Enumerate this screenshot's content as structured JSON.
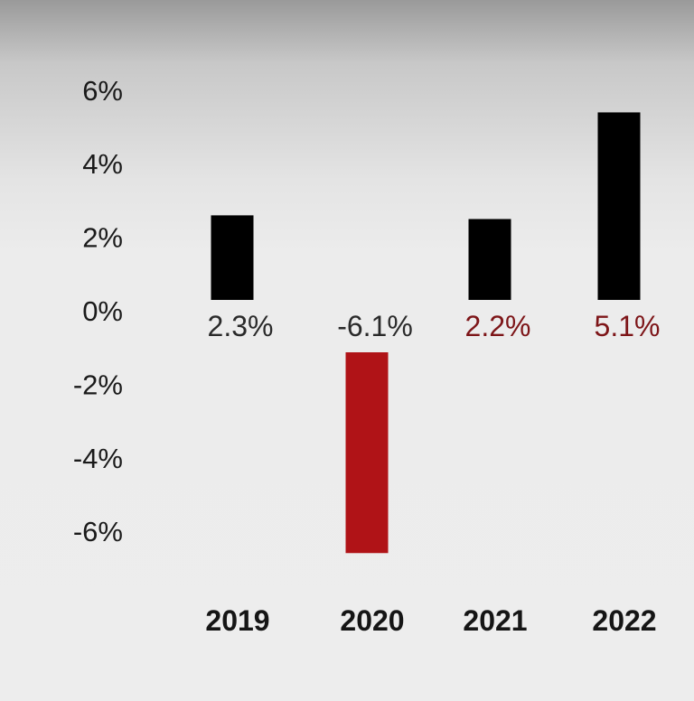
{
  "chart_data": {
    "type": "bar",
    "categories": [
      "2019",
      "2020",
      "2021",
      "2022"
    ],
    "values": [
      2.3,
      -6.1,
      2.2,
      5.1
    ],
    "data_labels": [
      "2.3%",
      "-6.1%",
      "2.2%",
      "5.1%"
    ],
    "y_ticks": [
      {
        "value": 6,
        "label": "6%"
      },
      {
        "value": 4,
        "label": "4%"
      },
      {
        "value": 2,
        "label": "2%"
      },
      {
        "value": 0,
        "label": "0%"
      },
      {
        "value": -2,
        "label": "-2%"
      },
      {
        "value": -4,
        "label": "-4%"
      },
      {
        "value": -6,
        "label": "-6%"
      }
    ],
    "ylim": [
      -6,
      6
    ],
    "grid": false,
    "colors": {
      "positive_bar": "#000000",
      "negative_bar": "#b01317",
      "label_neutral": "#2a2a2a",
      "label_highlight": "#7d1518"
    },
    "label_colors": [
      "#2a2a2a",
      "#2a2a2a",
      "#7d1518",
      "#7d1518"
    ]
  }
}
